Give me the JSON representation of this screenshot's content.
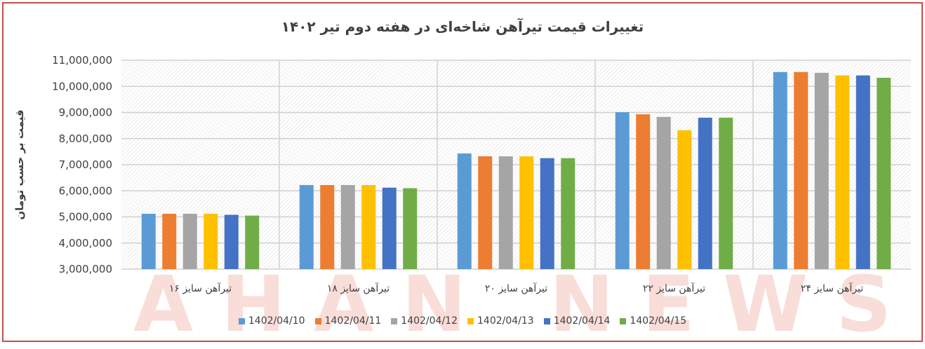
{
  "chart_data": {
    "type": "bar",
    "title": "تغییرات قیمت تیرآهن شاخه‌ای در هفته دوم تیر ۱۴۰۲",
    "xlabel": "",
    "ylabel": "قیمت بر حسب تومان",
    "ylim": [
      3000000,
      11000000
    ],
    "yticks": [
      "3,000,000",
      "4,000,000",
      "5,000,000",
      "6,000,000",
      "7,000,000",
      "8,000,000",
      "9,000,000",
      "10,000,000",
      "11,000,000"
    ],
    "grid": true,
    "legend": "bottom",
    "categories": [
      "تیرآهن سایز ۱۶",
      "تیرآهن سایز ۱۸",
      "تیرآهن سایز ۲۰",
      "تیرآهن سایز ۲۲",
      "تیرآهن سایز ۲۴"
    ],
    "series": [
      {
        "name": "1402/04/10",
        "color": "#5b9bd5",
        "values": [
          5120000,
          6220000,
          7430000,
          9010000,
          10550000
        ]
      },
      {
        "name": "1402/04/11",
        "color": "#ed7d31",
        "values": [
          5120000,
          6220000,
          7320000,
          8930000,
          10550000
        ]
      },
      {
        "name": "1402/04/12",
        "color": "#a5a5a5",
        "values": [
          5120000,
          6220000,
          7320000,
          8830000,
          10520000
        ]
      },
      {
        "name": "1402/04/13",
        "color": "#ffc000",
        "values": [
          5120000,
          6220000,
          7320000,
          8320000,
          10420000
        ]
      },
      {
        "name": "1402/04/14",
        "color": "#4472c4",
        "values": [
          5080000,
          6120000,
          7250000,
          8800000,
          10420000
        ]
      },
      {
        "name": "1402/04/15",
        "color": "#70ad47",
        "values": [
          5050000,
          6100000,
          7250000,
          8800000,
          10330000
        ]
      }
    ]
  },
  "watermark": "AHAN NEWS"
}
